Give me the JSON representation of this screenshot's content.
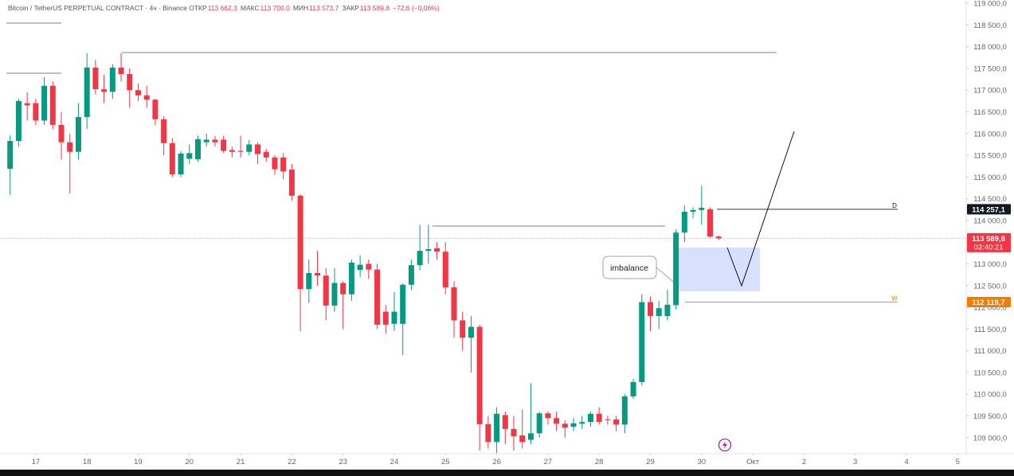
{
  "chart_data": {
    "type": "candlestick",
    "title": "Bitcoin / TetherUS PERPETUAL CONTRACT · 4ч · Binance",
    "ohlc_header": [
      {
        "key": "ОТКР",
        "label": "113 662,3",
        "value": 113662.3
      },
      {
        "key": "МАКС",
        "label": "113 700,0",
        "value": 113700
      },
      {
        "key": "МИН",
        "label": "113 573,7",
        "value": 113573.7
      },
      {
        "key": "ЗАКР",
        "label": "113 589,8",
        "value": 113589.8
      }
    ],
    "change": "−72,6 (−0,06%)",
    "up_color": "#089981",
    "down_color": "#f23645",
    "open": [
      115190,
      115830,
      116700,
      116700,
      116300,
      117100,
      116200,
      115800,
      115580,
      116380,
      117520,
      117020,
      116960,
      117520,
      117370,
      117000,
      116880,
      116780,
      116330,
      115780,
      115060,
      115420,
      115410,
      115800,
      115860,
      115860,
      115620,
      115600,
      115580,
      115750,
      115580,
      115450,
      115450,
      115170,
      114570,
      112420,
      112790,
      112730,
      112040,
      112560,
      112300,
      112860,
      113000,
      112870,
      111900,
      111620,
      111620,
      112520,
      112970,
      113300,
      113360,
      113280,
      112460,
      111700,
      111300,
      111550,
      109310,
      108900,
      109520,
      109200,
      109050,
      108950,
      109100,
      109560,
      109450,
      109320,
      109250,
      109320,
      109360,
      109550,
      109420,
      109420,
      109300,
      109950,
      110280,
      112120,
      111800,
      111800,
      112050,
      113720,
      114200,
      114240,
      114260,
      113630
    ],
    "high": [
      115960,
      116800,
      116950,
      116800,
      117300,
      117200,
      116500,
      116000,
      116700,
      117850,
      117700,
      117350,
      117600,
      117850,
      117500,
      117150,
      117100,
      116800,
      116400,
      115900,
      115600,
      115750,
      115950,
      116000,
      115950,
      115950,
      115700,
      115950,
      115850,
      115800,
      115650,
      115500,
      115550,
      115300,
      114600,
      113100,
      113300,
      112900,
      112900,
      112600,
      113100,
      113200,
      113100,
      113000,
      112050,
      112350,
      112550,
      113100,
      113900,
      113900,
      113500,
      113500,
      112600,
      111900,
      111800,
      111600,
      109500,
      109700,
      109600,
      109500,
      109650,
      110250,
      109600,
      109600,
      109600,
      109400,
      109450,
      109500,
      109600,
      109700,
      109500,
      109500,
      110000,
      110350,
      112300,
      112250,
      112150,
      112400,
      113800,
      114350,
      114300,
      114800,
      114300,
      113650
    ],
    "low": [
      114590,
      115700,
      116300,
      116200,
      116200,
      116100,
      115400,
      114620,
      115400,
      116100,
      116900,
      116700,
      116800,
      117200,
      116600,
      116750,
      116600,
      116200,
      115500,
      115000,
      115000,
      115300,
      115350,
      115700,
      115700,
      115550,
      115450,
      115450,
      115500,
      115300,
      115350,
      115050,
      114950,
      114450,
      111450,
      112100,
      112500,
      111700,
      111900,
      111500,
      112150,
      112700,
      112650,
      111500,
      111400,
      111450,
      110900,
      112400,
      112850,
      113000,
      113100,
      112300,
      111300,
      111000,
      110500,
      108700,
      108750,
      108650,
      108850,
      108700,
      108750,
      108850,
      109000,
      109300,
      109150,
      109000,
      109150,
      109200,
      109250,
      109300,
      109300,
      109150,
      109100,
      109900,
      110200,
      111450,
      111500,
      111700,
      111950,
      113500,
      114050,
      113900,
      113600,
      113550
    ],
    "close": [
      115830,
      116750,
      116650,
      116300,
      117100,
      116200,
      115800,
      115580,
      116380,
      117520,
      117020,
      116960,
      117520,
      117370,
      117000,
      116880,
      116780,
      116330,
      115780,
      115060,
      115540,
      115550,
      115870,
      115860,
      115800,
      115600,
      115580,
      115580,
      115750,
      115530,
      115450,
      115180,
      115130,
      114570,
      112420,
      112790,
      112730,
      112040,
      112560,
      112300,
      113030,
      112980,
      112870,
      111600,
      111600,
      111900,
      112520,
      112970,
      113300,
      113340,
      113280,
      112460,
      111700,
      111300,
      111550,
      109310,
      108900,
      109550,
      109200,
      109030,
      108900,
      109100,
      109560,
      109450,
      109320,
      109230,
      109330,
      109360,
      109550,
      109360,
      109400,
      109300,
      109950,
      110280,
      112120,
      111800,
      111980,
      112060,
      113720,
      114200,
      114240,
      114290,
      113630,
      113590
    ],
    "xlim": [
      -1,
      112
    ],
    "xticks": [
      {
        "value": 3,
        "label": "17"
      },
      {
        "value": 9,
        "label": "18"
      },
      {
        "value": 15,
        "label": "19"
      },
      {
        "value": 21,
        "label": "20"
      },
      {
        "value": 27,
        "label": "21"
      },
      {
        "value": 33,
        "label": "22"
      },
      {
        "value": 39,
        "label": "23"
      },
      {
        "value": 45,
        "label": "24"
      },
      {
        "value": 51,
        "label": "25"
      },
      {
        "value": 57,
        "label": "26"
      },
      {
        "value": 63,
        "label": "27"
      },
      {
        "value": 69,
        "label": "28"
      },
      {
        "value": 75,
        "label": "29"
      },
      {
        "value": 81,
        "label": "30"
      },
      {
        "value": 87,
        "label": "Окт"
      },
      {
        "value": 93,
        "label": "2"
      },
      {
        "value": 99,
        "label": "3"
      },
      {
        "value": 105,
        "label": "4"
      },
      {
        "value": 111,
        "label": "5"
      }
    ],
    "ylim": [
      108630,
      119075
    ],
    "yticks": [
      {
        "value": 109000,
        "label": "109 000,0"
      },
      {
        "value": 109500,
        "label": "109 500,0"
      },
      {
        "value": 110000,
        "label": "110 000,0"
      },
      {
        "value": 110500,
        "label": "110 500,0"
      },
      {
        "value": 111000,
        "label": "111 000,0"
      },
      {
        "value": 111500,
        "label": "111 500,0"
      },
      {
        "value": 112000,
        "label": "112 000,0"
      },
      {
        "value": 112500,
        "label": "112 500,0"
      },
      {
        "value": 113000,
        "label": "113 000,0"
      },
      {
        "value": 113500,
        "label": "113 500,0"
      },
      {
        "value": 114000,
        "label": "114 000,0"
      },
      {
        "value": 114500,
        "label": "114 500,0"
      },
      {
        "value": 115000,
        "label": "115 000,0"
      },
      {
        "value": 115500,
        "label": "115 500,0"
      },
      {
        "value": 116000,
        "label": "116 000,0"
      },
      {
        "value": 116500,
        "label": "116 500,0"
      },
      {
        "value": 117000,
        "label": "117 000,0"
      },
      {
        "value": 117500,
        "label": "117 500,0"
      },
      {
        "value": 118000,
        "label": "118 000,0"
      },
      {
        "value": 118500,
        "label": "118 500,0"
      },
      {
        "value": 119000,
        "label": "119 000,0"
      }
    ],
    "price_tags": [
      {
        "value": 114257.1,
        "label": "114 257,1",
        "color": "#131722",
        "line": "D"
      },
      {
        "value": 113589.8,
        "label": "113 589,8",
        "countdown": "03:40:21",
        "color": "#f23645"
      },
      {
        "value": 112119.7,
        "label": "112 119,7",
        "color": "#f57c00",
        "line": "W"
      }
    ],
    "annotation": "imbalance"
  }
}
